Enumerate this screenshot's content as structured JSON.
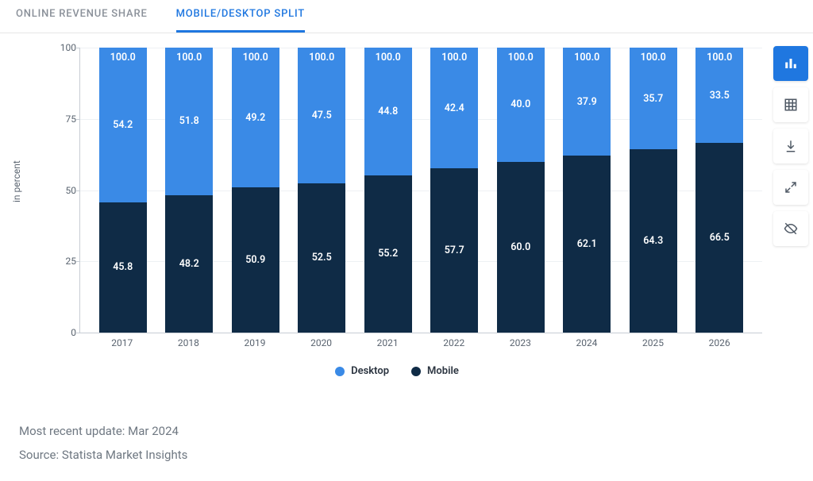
{
  "tabs": [
    {
      "label": "ONLINE REVENUE SHARE",
      "active": false
    },
    {
      "label": "MOBILE/DESKTOP SPLIT",
      "active": true
    }
  ],
  "chart": {
    "type": "stacked-bar",
    "y_label": "in percent",
    "y_min": 0,
    "y_max": 100,
    "y_tick_step": 25,
    "y_ticks": [
      0,
      25,
      50,
      75,
      100
    ],
    "categories": [
      "2017",
      "2018",
      "2019",
      "2020",
      "2021",
      "2022",
      "2023",
      "2024",
      "2025",
      "2026"
    ],
    "series": [
      {
        "name": "Mobile",
        "color": "#0f2b46",
        "values": [
          45.8,
          48.2,
          50.9,
          52.5,
          55.2,
          57.7,
          60.0,
          62.1,
          64.3,
          66.5
        ]
      },
      {
        "name": "Desktop",
        "color": "#3a8ae6",
        "values": [
          54.2,
          51.8,
          49.2,
          47.5,
          44.8,
          42.4,
          40.0,
          37.9,
          35.7,
          33.5
        ]
      }
    ],
    "total_label": "100.0",
    "bar_width_ratio": 0.72,
    "value_label_color": "#ffffff",
    "value_label_fontsize": 12.5,
    "axis_label_fontsize": 12,
    "axis_label_color": "#5a6470",
    "legend_order": [
      "Desktop",
      "Mobile"
    ],
    "background_color": "#ffffff",
    "grid_color": "#eef1f4",
    "axis_line_color": "#c7cdd4"
  },
  "footer": {
    "update": "Most recent update: Mar 2024",
    "source": "Source: Statista Market Insights"
  },
  "toolbar_icons": [
    "bar-chart-icon",
    "grid-icon",
    "download-icon",
    "expand-icon",
    "hide-icon"
  ]
}
